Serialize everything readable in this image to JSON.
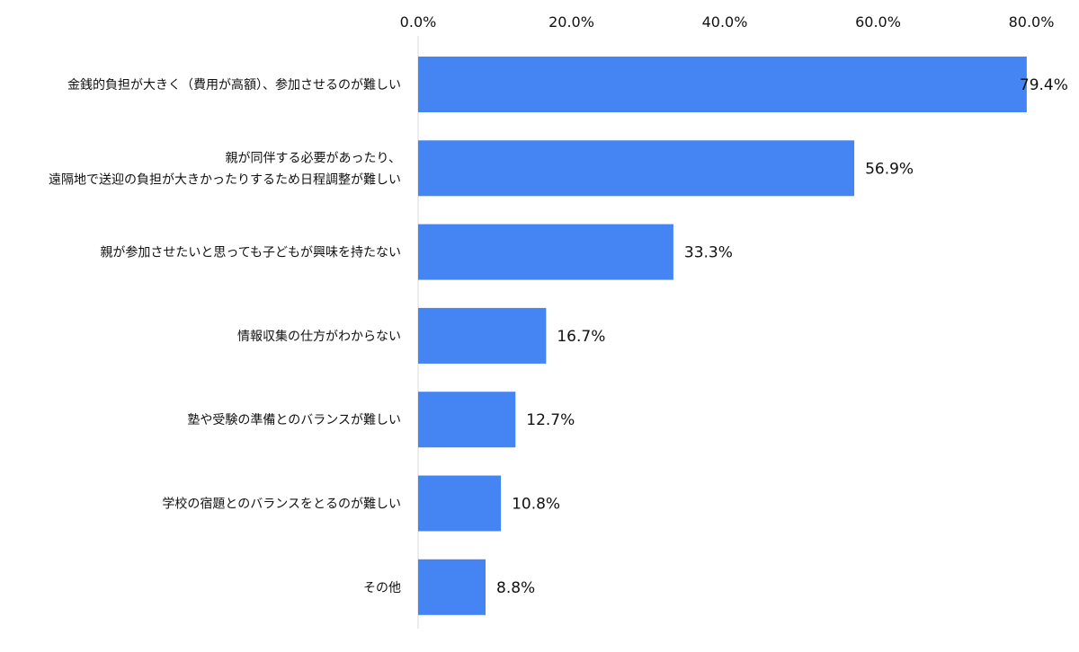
{
  "chart_data": {
    "type": "bar",
    "orientation": "horizontal",
    "categories": [
      [
        "金銭的負担が大きく（費用が高額）、参加させるのが難しい"
      ],
      [
        "親が同伴する必要があったり、",
        "遠隔地で送迎の負担が大きかったりするため日程調整が難しい"
      ],
      [
        "親が参加させたいと思っても子どもが興味を持たない"
      ],
      [
        "情報収集の仕方がわからない"
      ],
      [
        "塾や受験の準備とのバランスが難しい"
      ],
      [
        "学校の宿題とのバランスをとるのが難しい"
      ],
      [
        "その他"
      ]
    ],
    "values": [
      79.4,
      56.9,
      33.3,
      16.7,
      12.7,
      10.8,
      8.8
    ],
    "value_labels": [
      "79.4%",
      "56.9%",
      "33.3%",
      "16.7%",
      "12.7%",
      "10.8%",
      "8.8%"
    ],
    "xlim": [
      0,
      80
    ],
    "ticks": [
      0,
      20,
      40,
      60,
      80
    ],
    "tick_labels": [
      "0.0%",
      "20.0%",
      "40.0%",
      "60.0%",
      "80.0%"
    ],
    "axis_position": "top",
    "grid": false,
    "legend": "none",
    "title": "",
    "xlabel": "",
    "ylabel": "",
    "bar_color": "#4584F3",
    "axis_color": "#D9D9D9",
    "text_color": "#111111"
  }
}
